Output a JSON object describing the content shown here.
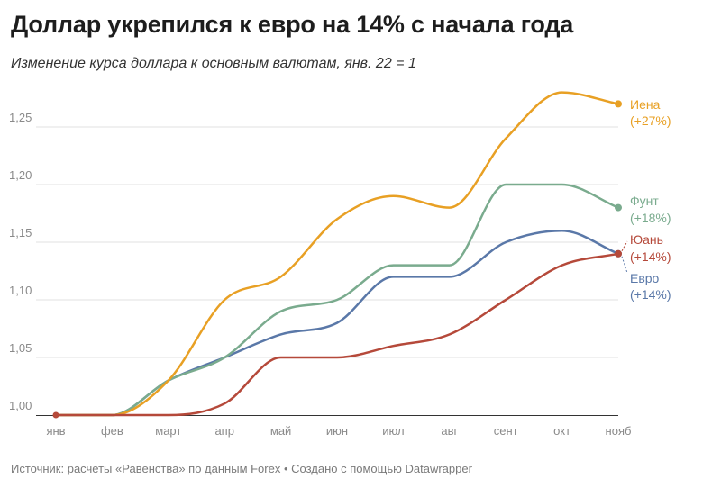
{
  "header": {
    "title": "Доллар укрепился к евро на 14% с начала года",
    "subtitle": "Изменение курса доллара к основным валютам, янв. 22 = 1"
  },
  "footer": {
    "source": "Источник: расчеты «Равенства» по данным Forex • Создано с помощью Datawrapper"
  },
  "chart_data": {
    "type": "line",
    "title": "Доллар укрепился к евро на 14% с начала года",
    "subtitle": "Изменение курса доллара к основным валютам, янв. 22 = 1",
    "xlabel": "",
    "ylabel": "",
    "categories": [
      "янв",
      "фев",
      "март",
      "апр",
      "май",
      "июн",
      "июл",
      "авг",
      "сент",
      "окт",
      "нояб"
    ],
    "y_tick_labels": [
      "1,00",
      "1,05",
      "1,10",
      "1,15",
      "1,20",
      "1,25"
    ],
    "y_ticks": [
      1.0,
      1.05,
      1.1,
      1.15,
      1.2,
      1.25
    ],
    "ylim": [
      1.0,
      1.28
    ],
    "grid": true,
    "legend": "direct labels at line ends",
    "series": [
      {
        "name": "Иена",
        "change_label": "(+27%)",
        "color": "#e8a024",
        "values": [
          1.0,
          1.0,
          1.03,
          1.1,
          1.12,
          1.17,
          1.19,
          1.18,
          1.24,
          1.28,
          1.27
        ]
      },
      {
        "name": "Фунт",
        "change_label": "(+18%)",
        "color": "#7aab8e",
        "values": [
          1.0,
          1.0,
          1.03,
          1.05,
          1.09,
          1.1,
          1.13,
          1.13,
          1.2,
          1.2,
          1.18
        ]
      },
      {
        "name": "Юань",
        "change_label": "(+14%)",
        "color": "#b5493a",
        "values": [
          1.0,
          1.0,
          1.0,
          1.01,
          1.05,
          1.05,
          1.06,
          1.07,
          1.1,
          1.13,
          1.14
        ]
      },
      {
        "name": "Евро",
        "change_label": "(+14%)",
        "color": "#5a78a8",
        "values": [
          1.0,
          1.0,
          1.03,
          1.05,
          1.07,
          1.08,
          1.12,
          1.12,
          1.15,
          1.16,
          1.14
        ]
      }
    ]
  }
}
